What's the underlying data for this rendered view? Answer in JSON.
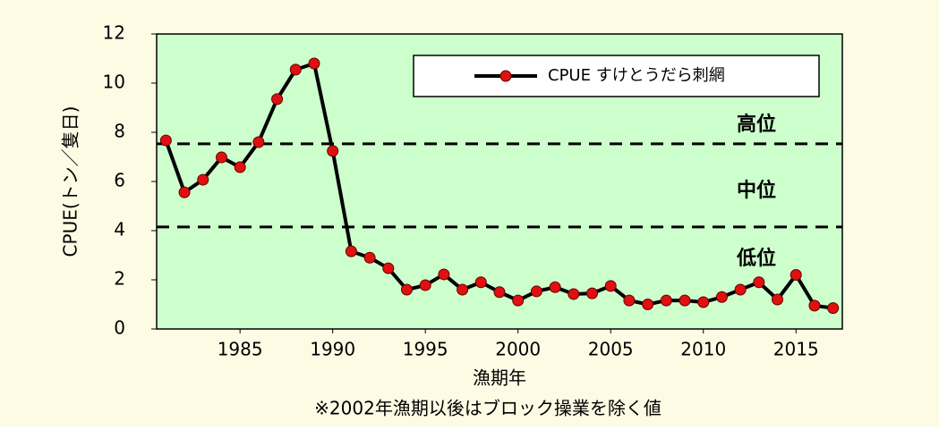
{
  "chart_data": {
    "type": "line",
    "y_label": "CPUE(トン／隻日)",
    "x_label": "漁期年",
    "note": "※2002年漁期以後はブロック操業を除く値",
    "x": [
      1981,
      1982,
      1983,
      1984,
      1985,
      1986,
      1987,
      1988,
      1989,
      1990,
      1991,
      1992,
      1993,
      1994,
      1995,
      1996,
      1997,
      1998,
      1999,
      2000,
      2001,
      2002,
      2003,
      2004,
      2005,
      2006,
      2007,
      2008,
      2009,
      2010,
      2011,
      2012,
      2013,
      2014,
      2015,
      2016,
      2017
    ],
    "series": [
      {
        "name": "CPUE すけとうだら刺網",
        "color": "#000000",
        "marker_color": "#e01010",
        "values": [
          7.67,
          5.56,
          6.07,
          6.98,
          6.58,
          7.6,
          9.35,
          10.55,
          10.8,
          7.24,
          3.16,
          2.9,
          2.47,
          1.6,
          1.78,
          2.22,
          1.6,
          1.9,
          1.5,
          1.16,
          1.53,
          1.7,
          1.42,
          1.45,
          1.75,
          1.16,
          1.0,
          1.16,
          1.16,
          1.09,
          1.3,
          1.6,
          1.9,
          1.2,
          2.2,
          0.95,
          0.85
        ]
      }
    ],
    "reference_lines": [
      7.53,
      4.15
    ],
    "annotations": [
      "高位",
      "中位",
      "低位"
    ],
    "xlim": [
      1980.5,
      2017.5
    ],
    "xticks": [
      1985,
      1990,
      1995,
      2000,
      2005,
      2010,
      2015
    ],
    "ylim": [
      0,
      12
    ],
    "yticks": [
      0,
      2,
      4,
      6,
      8,
      10,
      12
    ],
    "plot_color": "#ccffcc",
    "background": "#fdfbe4"
  }
}
